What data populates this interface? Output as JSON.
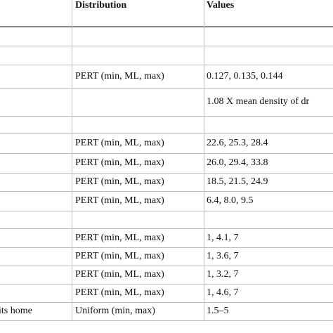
{
  "table": {
    "header": {
      "distribution": "Distribution",
      "values": "Values"
    },
    "rows": [
      {},
      {},
      {
        "distribution": "PERT (min, ML, max)",
        "values": "0.127, 0.135, 0.144"
      },
      {
        "values": "1.08 X mean density of dr"
      },
      {},
      {
        "distribution": "PERT (min, ML, max)",
        "values": "22.6, 25.3, 28.4"
      },
      {
        "distribution": "PERT (min, ML, max)",
        "values": "26.0, 29.4, 33.8"
      },
      {
        "distribution": "PERT (min, ML, max)",
        "values": "18.5, 21.5, 24.9"
      },
      {
        "distribution": "PERT (min, ML, max)",
        "values": "6.4, 8.0, 9.5"
      },
      {},
      {
        "distribution": "PERT (min, ML, max)",
        "values": "1, 4.1, 7"
      },
      {
        "distribution": "PERT (min, ML, max)",
        "values": "1, 3.6, 7"
      },
      {
        "distribution": "PERT (min, ML, max)",
        "values": "1, 3.2, 7"
      },
      {
        "distribution": "PERT (min, ML, max)",
        "values": "1, 4.6, 7"
      },
      {
        "label": "its home",
        "distribution": "Uniform (min, max)",
        "values": "1.5–5"
      }
    ]
  }
}
